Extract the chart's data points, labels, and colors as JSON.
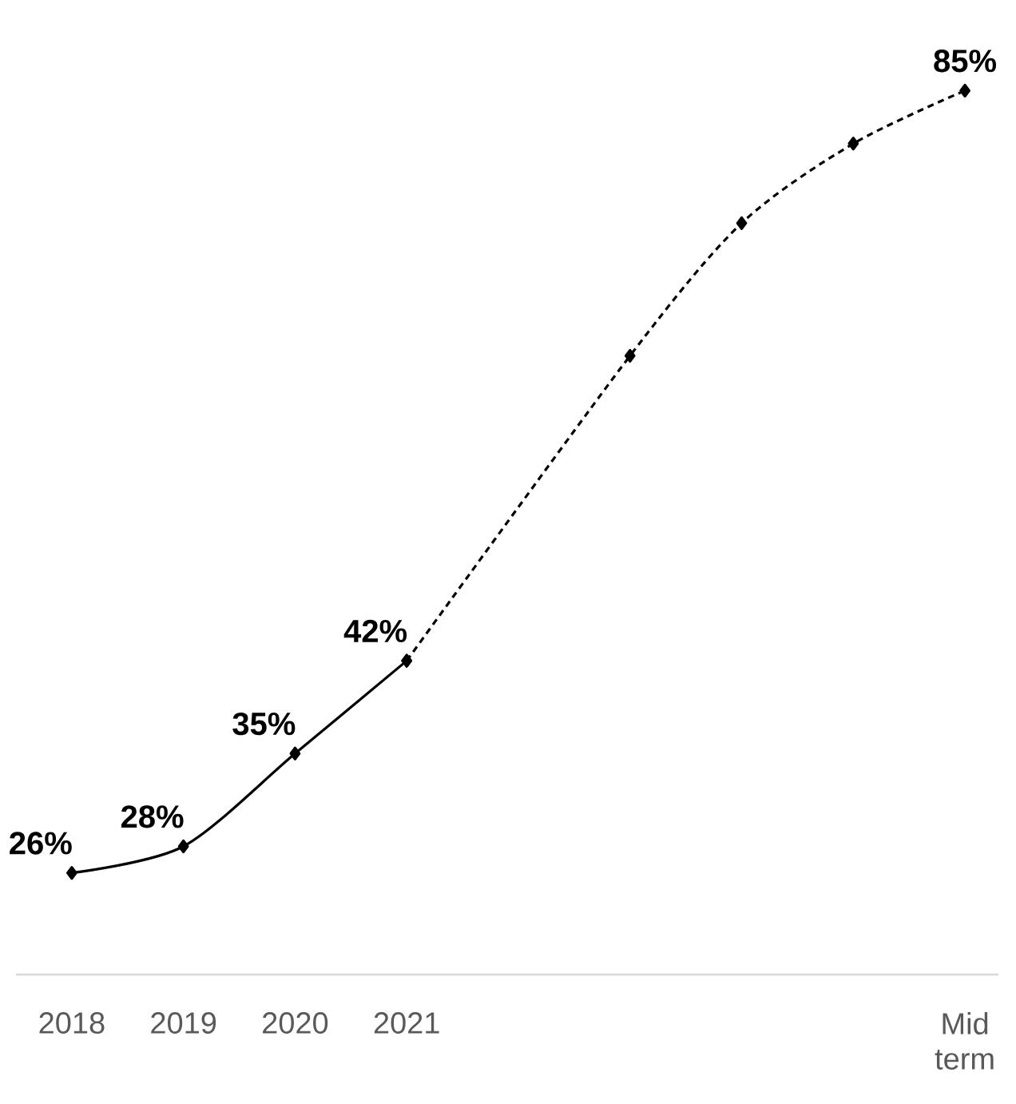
{
  "chart_data": {
    "type": "line",
    "categories": [
      "2018",
      "2019",
      "2020",
      "2021",
      null,
      null,
      null,
      null,
      "Mid term"
    ],
    "series": [
      {
        "color": "#000000",
        "line_style": "solid",
        "values": [
          26,
          28,
          35,
          42,
          null,
          null,
          null,
          null,
          null
        ],
        "value_labels": [
          "26%",
          "28%",
          "35%",
          "42%",
          null,
          null,
          null,
          null,
          null
        ]
      },
      {
        "color": "#000000",
        "line_style": "dashed",
        "values": [
          null,
          null,
          null,
          42,
          null,
          65,
          75,
          81,
          85
        ],
        "value_labels": [
          null,
          null,
          null,
          null,
          null,
          null,
          null,
          null,
          "85%"
        ]
      }
    ],
    "marker": "diamond"
  }
}
